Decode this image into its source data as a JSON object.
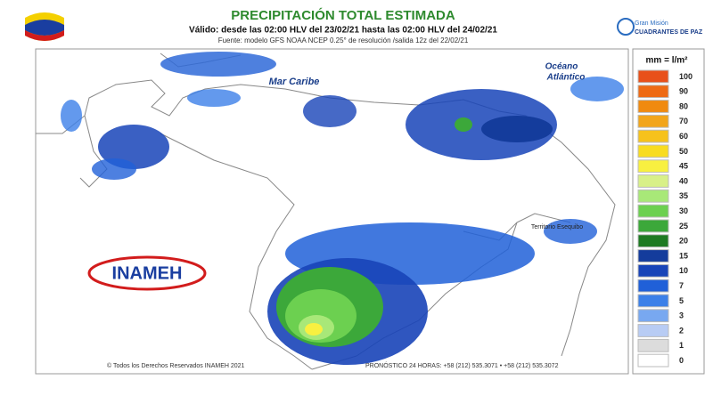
{
  "header": {
    "title": "PRECIPITACIÓN TOTAL ESTIMADA",
    "subtitle": "Válido: desde las 02:00 HLV del 23/02/21 hasta las 02:00 HLV del 24/02/21",
    "source": "Fuente: modelo GFS NOAA  NCEP 0.25° de resolución /salida 12z del 22/02/21",
    "logo_right": [
      "Gran Misión",
      "CUADRANTES DE PAZ"
    ]
  },
  "map": {
    "labels": [
      "Mar Caribe",
      "Océano",
      "Atlántico",
      "Territorio Esequibo"
    ],
    "logo": "INAMEH"
  },
  "legend": {
    "title": "mm = l/m²",
    "items": [
      {
        "value": 100,
        "color": "#e8501a"
      },
      {
        "value": 90,
        "color": "#ee6a14"
      },
      {
        "value": 80,
        "color": "#f08a10"
      },
      {
        "value": 70,
        "color": "#f2a51a"
      },
      {
        "value": 60,
        "color": "#f6c21c"
      },
      {
        "value": 50,
        "color": "#f8dc20"
      },
      {
        "value": 45,
        "color": "#f8f040"
      },
      {
        "value": 40,
        "color": "#d8f088"
      },
      {
        "value": 35,
        "color": "#a8e878"
      },
      {
        "value": 30,
        "color": "#6cd050"
      },
      {
        "value": 25,
        "color": "#3ca83a"
      },
      {
        "value": 20,
        "color": "#1e7a22"
      },
      {
        "value": 15,
        "color": "#143c9c"
      },
      {
        "value": 10,
        "color": "#1844b8"
      },
      {
        "value": 7,
        "color": "#2060d8"
      },
      {
        "value": 5,
        "color": "#3c80e8"
      },
      {
        "value": 3,
        "color": "#78a8f0"
      },
      {
        "value": 2,
        "color": "#b8ccf4"
      },
      {
        "value": 1,
        "color": "#dcdcdc"
      },
      {
        "value": 0,
        "color": "#ffffff"
      }
    ]
  },
  "footer": {
    "copyright": "© Todos los Derechos Reservados INAMEH 2021",
    "phones": "PRONÓSTICO 24 HORAS: +58 (212) 535.3071 • +58 (212) 535.3072"
  }
}
